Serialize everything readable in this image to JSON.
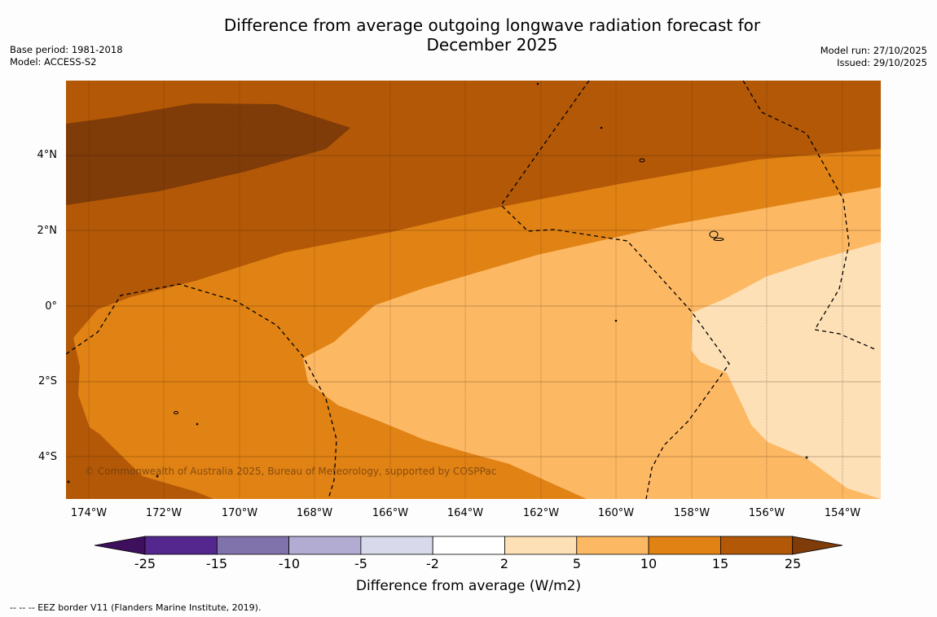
{
  "title_line1": "Difference from average outgoing longwave radiation forecast for",
  "title_line2": "December 2025",
  "meta_left": {
    "base_period": "Base period: 1981-2018",
    "model": "Model: ACCESS-S2"
  },
  "meta_right": {
    "model_run": "Model run: 27/10/2025",
    "issued": "Issued: 29/10/2025"
  },
  "lat_labels": [
    "4°N",
    "2°N",
    "0°",
    "2°S",
    "4°S"
  ],
  "lon_labels": [
    "174°W",
    "172°W",
    "170°W",
    "168°W",
    "166°W",
    "164°W",
    "162°W",
    "160°W",
    "158°W",
    "156°W",
    "154°W"
  ],
  "copyright": "© Commonwealth of Australia 2025, Bureau of Meteorology, supported by COSPPac",
  "colorbar": {
    "tick_labels": [
      "-25",
      "-15",
      "-10",
      "-5",
      "-2",
      "2",
      "5",
      "10",
      "15",
      "25"
    ],
    "colors": [
      "#3d0f5c",
      "#54278f",
      "#8073ac",
      "#b2abd2",
      "#d8daeb",
      "#ffffff",
      "#fee0b6",
      "#fdb863",
      "#e08214",
      "#b35806",
      "#7f3b08"
    ],
    "title": "Difference from average (W/m2)"
  },
  "map_colors": {
    "very_high": "#7f3b08",
    "high": "#b35806",
    "medium": "#e08214",
    "low": "#fdb863",
    "lowest": "#fee0b6"
  },
  "footnote": "--  --  -- EEZ border V11 (Flanders Marine Institute, 2019)."
}
